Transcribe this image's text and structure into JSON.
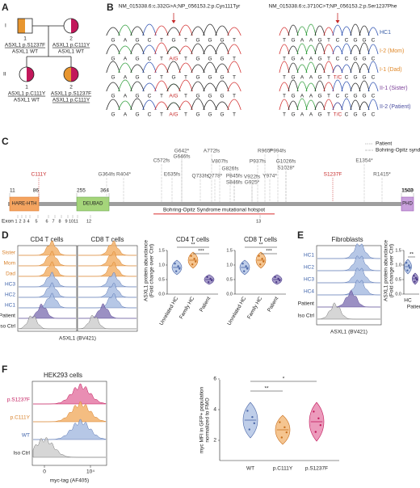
{
  "panel_a": {
    "label": "A",
    "generations": [
      "I",
      "II"
    ],
    "individuals": [
      {
        "number": "1",
        "genotype": [
          "ASXL1 p.S1237F",
          "ASXL1 WT"
        ]
      },
      {
        "number": "2",
        "genotype": [
          "ASXL1 p.C111Y",
          "ASXL1 WT"
        ]
      },
      {
        "number": "1",
        "genotype": [
          "ASXL1 p.C111Y",
          "ASXL1 WT"
        ]
      },
      {
        "number": "2",
        "genotype": [
          "ASXL1 p.S1237F",
          "ASXL1 p.C111Y"
        ]
      }
    ]
  },
  "panel_b": {
    "label": "B",
    "titles": [
      "NM_015338.6:c.332G>A;NP_056153.2:p.Cys111Tyr",
      "NM_015338.6:c.3710C>T;NP_056153.2:p.Ser1237Phe"
    ],
    "rows": [
      {
        "name": "HC1",
        "left": [
          "G",
          "A",
          "G",
          "C",
          "T",
          "G",
          "T",
          "G",
          "G",
          "G",
          "T"
        ],
        "right": [
          "T",
          "G",
          "A",
          "A",
          "G",
          "T",
          "C",
          "C",
          "G",
          "G",
          "C"
        ]
      },
      {
        "name": "I-2 (Mom)",
        "left": [
          "G",
          "A",
          "G",
          "C",
          "T",
          "A/G",
          "T",
          "G",
          "G",
          "G",
          "T"
        ],
        "right": [
          "T",
          "G",
          "A",
          "A",
          "G",
          "T",
          "C",
          "C",
          "G",
          "G",
          "C"
        ]
      },
      {
        "name": "I-1 (Dad)",
        "left": [
          "G",
          "A",
          "G",
          "C",
          "T",
          "G",
          "T",
          "G",
          "G",
          "G",
          "T"
        ],
        "right": [
          "T",
          "G",
          "A",
          "A",
          "G",
          "T",
          "T/C",
          "C",
          "G",
          "G",
          "C"
        ]
      },
      {
        "name": "II-1 (Sister)",
        "left": [
          "G",
          "A",
          "G",
          "C",
          "T",
          "A/G",
          "T",
          "G",
          "G",
          "G",
          "T"
        ],
        "right": [
          "T",
          "G",
          "A",
          "A",
          "G",
          "T",
          "C",
          "C",
          "G",
          "G",
          "C"
        ]
      },
      {
        "name": "II-2 (Patient)",
        "left": [
          "G",
          "A",
          "G",
          "C",
          "T",
          "A/G",
          "T",
          "G",
          "G",
          "G",
          "T"
        ],
        "right": [
          "T",
          "G",
          "A",
          "A",
          "G",
          "T",
          "T/C",
          "C",
          "G",
          "G",
          "C"
        ]
      }
    ]
  },
  "panel_c": {
    "label": "C",
    "legend": [
      "Patient",
      "Bohring-Opitz syndrome"
    ],
    "domains": [
      {
        "name": "HARE-HTH",
        "start": "11",
        "end": "86"
      },
      {
        "name": "DEUBAD",
        "start": "255",
        "end": "364"
      },
      {
        "name": "PHD",
        "start": "1503",
        "end": "1540"
      }
    ],
    "patient_variants": [
      "C111Y",
      "S1237F"
    ],
    "bos_variants": [
      "G364fs",
      "R404*",
      "E635fs",
      "G642*",
      "G646fs",
      "C572fs",
      "A772fs",
      "Q733fs",
      "Q778*",
      "V807fs",
      "G826fs",
      "P845fs",
      "S846fs",
      "V922fs",
      "G925*",
      "P937fs",
      "R965*",
      "Y974*",
      "P994fs",
      "G1026fs",
      "S1028*",
      "E1354*",
      "R1415*"
    ],
    "hotspot": "Bohring-Opitz Syndrome mutational hotspot",
    "exon_label": "Exon",
    "exons": [
      "1",
      "2",
      "3",
      "4",
      "5",
      "6",
      "7",
      "8",
      "9",
      "10",
      "11",
      "12",
      "13"
    ]
  },
  "panel_d": {
    "label": "D",
    "histogram_titles": [
      "CD4 T cells",
      "CD8 T cells"
    ],
    "samples": [
      "Sister",
      "Mom",
      "Dad",
      "HC3",
      "HC2",
      "HC1",
      "Patient",
      "Iso Ctrl"
    ],
    "x_label": "ASXL1 (BV421)",
    "plots": [
      {
        "title": "CD4 T cells",
        "significance": [
          "**",
          "***"
        ]
      },
      {
        "title": "CD8 T cells",
        "significance": [
          "**",
          "***"
        ]
      }
    ],
    "y_label": [
      "ASXL1 protein abundance",
      "(Fold change over Ctrl)"
    ],
    "yticks": [
      "0.0",
      "0.5",
      "1.0",
      "1.5"
    ],
    "categories": [
      "Unrelated HC",
      "Family HC",
      "Patient"
    ]
  },
  "panel_e": {
    "label": "E",
    "title": "Fibroblasts",
    "samples": [
      "HC1",
      "HC2",
      "HC3",
      "HC4",
      "Patient",
      "Iso Ctrl"
    ],
    "x_label": "ASXL1 (BV421)",
    "y_label": [
      "ASXL1 protein abundance",
      "(Fold change over Ctrl)"
    ],
    "yticks": [
      "0.0",
      "0.5",
      "1.0",
      "1.5"
    ],
    "categories": [
      "HC",
      "Patient"
    ],
    "significance": [
      "**"
    ]
  },
  "panel_f": {
    "label": "F",
    "title": "HEK293 cells",
    "samples": [
      "p.S1237F",
      "p.C111Y",
      "WT",
      "Iso Ctrl"
    ],
    "xticks": [
      "0",
      "10⁴"
    ],
    "x_label": "myc-tag (AF405)",
    "y_label": [
      "myc MFI in GFP+ population",
      "normalized to FMO"
    ],
    "yticks": [
      2,
      4,
      6
    ],
    "categories": [
      "WT",
      "p.C111Y",
      "p.S1237F"
    ],
    "significance": [
      "**",
      "*"
    ]
  }
}
